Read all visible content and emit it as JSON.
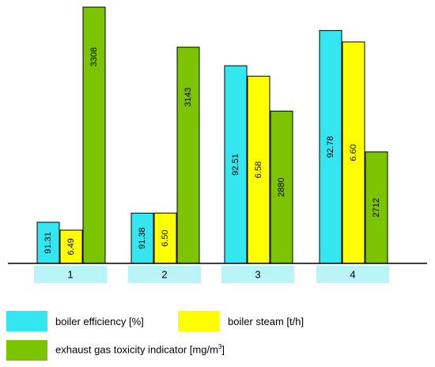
{
  "chart_data": {
    "type": "bar",
    "categories": [
      "1",
      "2",
      "3",
      "4"
    ],
    "series": [
      {
        "name": "boiler efficiency [%]",
        "color": "#33E6F0",
        "values": [
          91.31,
          91.38,
          92.51,
          92.78
        ],
        "labels": [
          "91.31",
          "91.38",
          "92.51",
          "92.78"
        ]
      },
      {
        "name": "boiler steam [t/h]",
        "color": "#FFFF00",
        "values": [
          6.49,
          6.5,
          6.58,
          6.6
        ],
        "labels": [
          "6.49",
          "6.50",
          "6.58",
          "6.60"
        ]
      },
      {
        "name": "exhaust gas toxicity indicator [mg/m3]",
        "color": "#7CC400",
        "values": [
          3308,
          3143,
          2880,
          2712
        ],
        "labels": [
          "3308",
          "3143",
          "2880",
          "2712"
        ]
      }
    ],
    "legend_placement": "bottom",
    "grid": false,
    "category_box_color": "#B8F4F8"
  },
  "legend": {
    "efficiency": "boiler efficiency [%]",
    "steam": "boiler steam [t/h]",
    "toxicity_main": "exhaust gas toxicity indicator [mg/m",
    "toxicity_sup": "3",
    "toxicity_end": "]"
  }
}
